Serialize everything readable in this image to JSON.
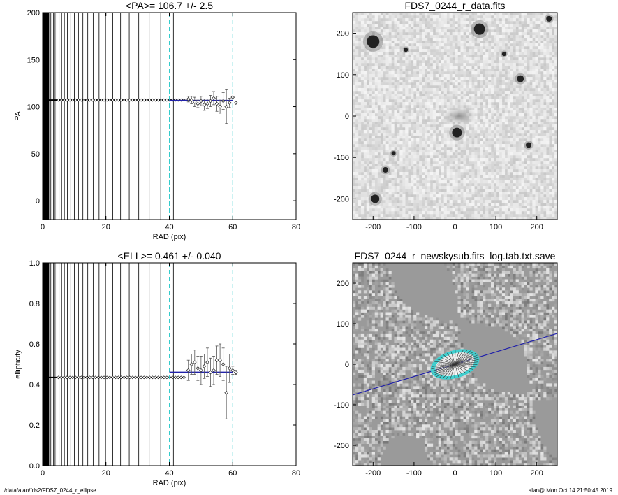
{
  "footer": {
    "left": "/data/alan/fds2/FDS7_0244_r_ellipse",
    "right": "alan@  Mon Oct 14 21:50:45 2019"
  },
  "chart_data": [
    {
      "type": "scatter",
      "title": "<PA>= 106.7 +/-   2.5",
      "xlabel": "RAD (pix)",
      "ylabel": "PA",
      "xlim": [
        0,
        80
      ],
      "ylim": [
        -20,
        200
      ],
      "xticks": [
        0,
        20,
        40,
        60,
        80
      ],
      "yticks": [
        0,
        50,
        100,
        150,
        200
      ],
      "vlines_cyan_dashed": [
        40,
        60
      ],
      "mean_line": {
        "x": [
          40,
          60
        ],
        "y": [
          106.7,
          106.7
        ],
        "color": "#2222aa"
      },
      "constant_segment": {
        "x_from": 0,
        "x_to": 45,
        "y": 107
      },
      "points": [
        {
          "x": 46,
          "y": 108,
          "err": 3
        },
        {
          "x": 47,
          "y": 107,
          "err": 4
        },
        {
          "x": 48,
          "y": 105,
          "err": 5
        },
        {
          "x": 49,
          "y": 103,
          "err": 4
        },
        {
          "x": 50,
          "y": 106,
          "err": 5
        },
        {
          "x": 51,
          "y": 102,
          "err": 6
        },
        {
          "x": 52,
          "y": 103,
          "err": 5
        },
        {
          "x": 53,
          "y": 106,
          "err": 6
        },
        {
          "x": 54,
          "y": 109,
          "err": 7
        },
        {
          "x": 55,
          "y": 103,
          "err": 8
        },
        {
          "x": 56,
          "y": 100,
          "err": 7
        },
        {
          "x": 57,
          "y": 106,
          "err": 9
        },
        {
          "x": 58,
          "y": 100,
          "err": 18
        },
        {
          "x": 59,
          "y": 104,
          "err": 5
        },
        {
          "x": 60,
          "y": 110,
          "err": 0
        },
        {
          "x": 61,
          "y": 104,
          "err": 0
        }
      ]
    },
    {
      "type": "scatter",
      "title": "<ELL>= 0.461 +/-  0.040",
      "xlabel": "RAD (pix)",
      "ylabel": "ellipticity",
      "xlim": [
        0,
        80
      ],
      "ylim": [
        0,
        1
      ],
      "xticks": [
        0,
        20,
        40,
        60,
        80
      ],
      "yticks": [
        0.0,
        0.2,
        0.4,
        0.6,
        0.8,
        1.0
      ],
      "vlines_cyan_dashed": [
        40,
        60
      ],
      "mean_line": {
        "x": [
          40,
          60
        ],
        "y": [
          0.461,
          0.461
        ],
        "color": "#2222aa"
      },
      "constant_segment": {
        "x_from": 0,
        "x_to": 45,
        "y": 0.435
      },
      "points": [
        {
          "x": 46,
          "y": 0.47,
          "err": 0.05
        },
        {
          "x": 47,
          "y": 0.5,
          "err": 0.05
        },
        {
          "x": 48,
          "y": 0.51,
          "err": 0.06
        },
        {
          "x": 49,
          "y": 0.48,
          "err": 0.06
        },
        {
          "x": 50,
          "y": 0.47,
          "err": 0.07
        },
        {
          "x": 51,
          "y": 0.49,
          "err": 0.06
        },
        {
          "x": 52,
          "y": 0.51,
          "err": 0.07
        },
        {
          "x": 53,
          "y": 0.46,
          "err": 0.07
        },
        {
          "x": 54,
          "y": 0.47,
          "err": 0.07
        },
        {
          "x": 55,
          "y": 0.52,
          "err": 0.07
        },
        {
          "x": 56,
          "y": 0.52,
          "err": 0.08
        },
        {
          "x": 57,
          "y": 0.5,
          "err": 0.08
        },
        {
          "x": 58,
          "y": 0.36,
          "err": 0.13
        },
        {
          "x": 59,
          "y": 0.48,
          "err": 0.07
        },
        {
          "x": 60,
          "y": 0.47,
          "err": 0.02
        },
        {
          "x": 61,
          "y": 0.46,
          "err": 0.01
        }
      ]
    },
    {
      "type": "heatmap",
      "title": "FDS7_0244_r_data.fits",
      "xlim": [
        -250,
        250
      ],
      "ylim": [
        -250,
        250
      ],
      "xticks": [
        -200,
        -100,
        0,
        100,
        200
      ],
      "yticks": [
        -200,
        -100,
        0,
        100,
        200
      ],
      "colormap": "inverted grayscale",
      "sources": [
        {
          "x": -200,
          "y": 180,
          "r": 9
        },
        {
          "x": 60,
          "y": 210,
          "r": 8
        },
        {
          "x": 5,
          "y": -40,
          "r": 7
        },
        {
          "x": 160,
          "y": 90,
          "r": 5
        },
        {
          "x": -195,
          "y": -200,
          "r": 6
        },
        {
          "x": -170,
          "y": -130,
          "r": 4
        },
        {
          "x": 230,
          "y": 235,
          "r": 4
        },
        {
          "x": 180,
          "y": -70,
          "r": 4
        },
        {
          "x": -120,
          "y": 160,
          "r": 3
        },
        {
          "x": -150,
          "y": -90,
          "r": 3
        },
        {
          "x": 120,
          "y": 150,
          "r": 3
        }
      ],
      "diffuse_galaxy": {
        "x": 10,
        "y": 0,
        "rx": 45,
        "ry": 22
      }
    },
    {
      "type": "heatmap",
      "title": "FDS7_0244_r_newskysub.fits_log.tab.txt.save",
      "xlim": [
        -250,
        250
      ],
      "ylim": [
        -250,
        250
      ],
      "xticks": [
        -200,
        -100,
        0,
        100,
        200
      ],
      "yticks": [
        -200,
        -100,
        0,
        100,
        200
      ],
      "colormap": "grayscale",
      "pa_line": {
        "angle_deg": 16.7,
        "color": "#2222aa"
      },
      "isophotes": {
        "center": [
          0,
          0
        ],
        "a_max": 60,
        "ellipticity": 0.461,
        "pa_deg": 106.7,
        "color": "#40d0d0"
      }
    }
  ]
}
